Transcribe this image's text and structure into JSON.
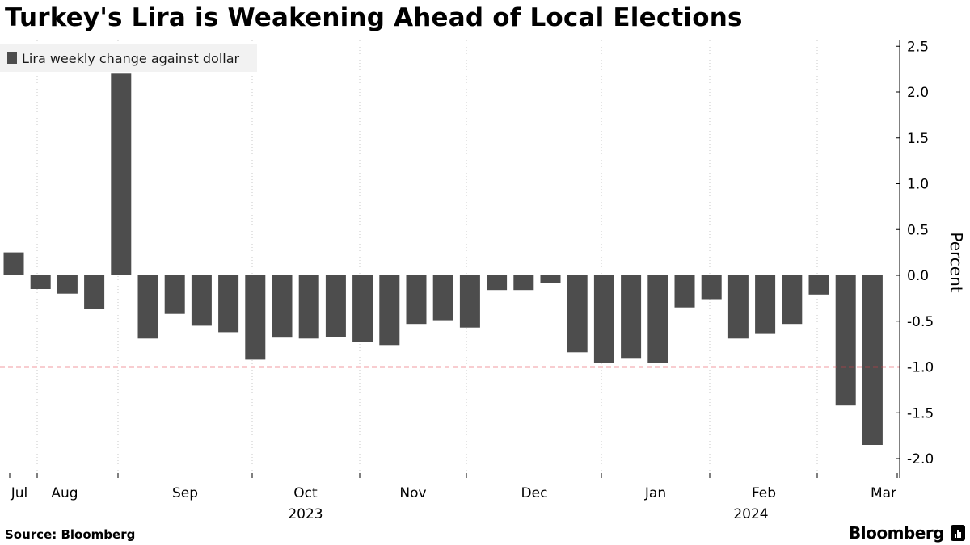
{
  "title": "Turkey's Lira is Weakening Ahead of Local Elections",
  "source": "Source: Bloomberg",
  "brand": "Bloomberg",
  "chart_data": {
    "type": "bar",
    "series": [
      {
        "name": "Lira weekly change against dollar",
        "color": "#4d4d4d",
        "values": [
          0.25,
          -0.15,
          -0.2,
          -0.37,
          2.2,
          -0.69,
          -0.42,
          -0.55,
          -0.62,
          -0.92,
          -0.68,
          -0.69,
          -0.67,
          -0.73,
          -0.76,
          -0.53,
          -0.49,
          -0.57,
          -0.16,
          -0.16,
          -0.08,
          -0.84,
          -0.96,
          -0.91,
          -0.96,
          -0.35,
          -0.26,
          -0.69,
          -0.64,
          -0.53,
          -0.21,
          -1.42,
          -1.85
        ]
      }
    ],
    "x_tick_labels": [
      "Jul",
      "Aug",
      "Sep",
      "Oct",
      "Nov",
      "Dec",
      "Jan",
      "Feb",
      "Mar"
    ],
    "x_year_labels": [
      "2023",
      "2024"
    ],
    "ylabel": "Percent",
    "ylim": [
      -2.2,
      2.5
    ],
    "y_ticks": [
      2.5,
      2.0,
      1.5,
      1.0,
      0.5,
      0.0,
      -0.5,
      -1.0,
      -1.5,
      -2.0
    ],
    "y_tick_labels": [
      "2.5",
      "2.0",
      "1.5",
      "1.0",
      "0.5",
      "0.0",
      "-0.5",
      "-1.0",
      "-1.5",
      "-2.0"
    ],
    "reference_line": {
      "value": -1.0,
      "color": "#e63946",
      "style": "dashed"
    },
    "grid": "vertical-dotted",
    "legend_position": "top-left"
  }
}
